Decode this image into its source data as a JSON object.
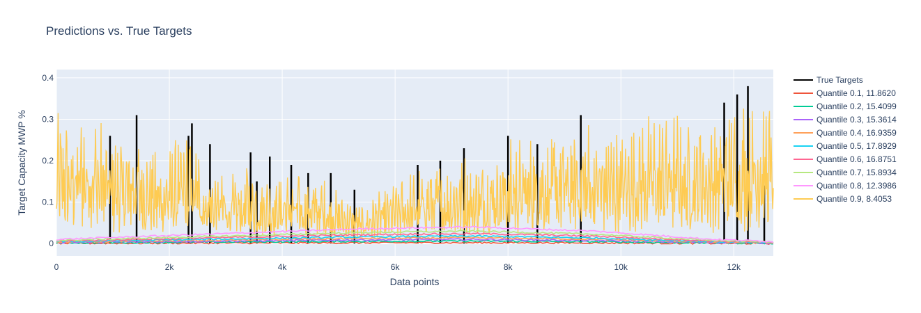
{
  "chart_data": {
    "type": "line",
    "title": "Predictions vs. True Targets",
    "xlabel": "Data points",
    "ylabel": "Target Capacity MWP %",
    "xlim": [
      0,
      12700
    ],
    "ylim": [
      -0.03,
      0.42
    ],
    "x_ticks": [
      0,
      2000,
      4000,
      6000,
      8000,
      10000,
      12000
    ],
    "x_tick_labels": [
      "0",
      "2k",
      "4k",
      "6k",
      "8k",
      "10k",
      "12k"
    ],
    "y_ticks": [
      0,
      0.1,
      0.2,
      0.3,
      0.4
    ],
    "y_tick_labels": [
      "0",
      "0.1",
      "0.2",
      "0.3",
      "0.4"
    ],
    "grid": true,
    "legend_position": "right",
    "plot_background": "#e5ecf6",
    "series": [
      {
        "name": "True Targets",
        "color": "#000000"
      },
      {
        "name": "Quantile 0.1, 11.8620",
        "color": "#ef553b"
      },
      {
        "name": "Quantile 0.2, 15.4099",
        "color": "#00cc96"
      },
      {
        "name": "Quantile 0.3, 15.3614",
        "color": "#ab63fa"
      },
      {
        "name": "Quantile 0.4, 16.9359",
        "color": "#ffa15a"
      },
      {
        "name": "Quantile 0.5, 17.8929",
        "color": "#19d3f3"
      },
      {
        "name": "Quantile 0.6, 16.8751",
        "color": "#ff6692"
      },
      {
        "name": "Quantile 0.7, 15.8934",
        "color": "#b6e880"
      },
      {
        "name": "Quantile 0.8, 12.3986",
        "color": "#ff97ff"
      },
      {
        "name": "Quantile 0.9, 8.4053",
        "color": "#fecb52"
      }
    ],
    "envelope": {
      "x": [
        0,
        200,
        400,
        500,
        600,
        800,
        1000,
        1200,
        1400,
        1600,
        1800,
        2000,
        2200,
        2400,
        2600,
        2800,
        3000,
        3200,
        3400,
        3600,
        3800,
        4000,
        4200,
        4400,
        4600,
        4800,
        5000,
        5200,
        5400,
        5600,
        5800,
        6000,
        6200,
        6400,
        6600,
        6800,
        7000,
        7200,
        7400,
        7600,
        7800,
        8000,
        8200,
        8400,
        8600,
        8800,
        9000,
        9200,
        9400,
        9600,
        9800,
        10000,
        10200,
        10400,
        10600,
        10800,
        11000,
        11200,
        11400,
        11600,
        11800,
        12000,
        12200,
        12400,
        12600,
        12700
      ],
      "quantile_0_9_peak": [
        0.32,
        0.3,
        0.33,
        0.36,
        0.37,
        0.3,
        0.29,
        0.26,
        0.3,
        0.24,
        0.22,
        0.24,
        0.26,
        0.29,
        0.21,
        0.19,
        0.18,
        0.16,
        0.2,
        0.17,
        0.16,
        0.18,
        0.17,
        0.16,
        0.17,
        0.15,
        0.12,
        0.1,
        0.09,
        0.11,
        0.13,
        0.14,
        0.17,
        0.18,
        0.2,
        0.21,
        0.19,
        0.22,
        0.2,
        0.21,
        0.24,
        0.25,
        0.26,
        0.27,
        0.28,
        0.28,
        0.29,
        0.3,
        0.31,
        0.3,
        0.28,
        0.3,
        0.3,
        0.32,
        0.32,
        0.34,
        0.33,
        0.3,
        0.34,
        0.31,
        0.34,
        0.35,
        0.37,
        0.38,
        0.35,
        0.39
      ],
      "true_target_spikes": [
        {
          "x": 950,
          "y": 0.26
        },
        {
          "x": 1420,
          "y": 0.31
        },
        {
          "x": 2340,
          "y": 0.26
        },
        {
          "x": 2400,
          "y": 0.29
        },
        {
          "x": 2720,
          "y": 0.24
        },
        {
          "x": 3440,
          "y": 0.22
        },
        {
          "x": 3550,
          "y": 0.15
        },
        {
          "x": 3780,
          "y": 0.21
        },
        {
          "x": 4160,
          "y": 0.19
        },
        {
          "x": 4460,
          "y": 0.17
        },
        {
          "x": 4860,
          "y": 0.17
        },
        {
          "x": 5280,
          "y": 0.13
        },
        {
          "x": 6400,
          "y": 0.19
        },
        {
          "x": 6800,
          "y": 0.2
        },
        {
          "x": 7220,
          "y": 0.23
        },
        {
          "x": 8000,
          "y": 0.26
        },
        {
          "x": 8520,
          "y": 0.24
        },
        {
          "x": 9290,
          "y": 0.31
        },
        {
          "x": 11830,
          "y": 0.34
        },
        {
          "x": 12060,
          "y": 0.36
        },
        {
          "x": 12250,
          "y": 0.38
        },
        {
          "x": 12540,
          "y": 0.14
        }
      ],
      "quantile_bands_mid": [
        0.01,
        0.015,
        0.02,
        0.025,
        0.03,
        0.035,
        0.038,
        0.04,
        0.035,
        0.03,
        0.02,
        0.01,
        0.005
      ]
    }
  }
}
